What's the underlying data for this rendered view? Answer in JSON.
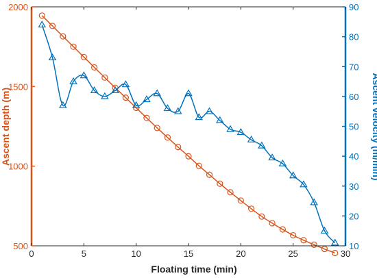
{
  "chart_data": {
    "type": "line",
    "xlabel": "Floating time (min)",
    "ylabel_left": "Ascent depth (m)",
    "ylabel_right": "Ascent velocity (m/min)",
    "xlim": [
      0,
      30
    ],
    "ylim_left": [
      500,
      2000
    ],
    "ylim_right": [
      10,
      90
    ],
    "x_ticks": [
      0,
      5,
      10,
      15,
      20,
      25,
      30
    ],
    "y_left_ticks": [
      500,
      1000,
      1500,
      2000
    ],
    "y_right_ticks": [
      10,
      20,
      30,
      40,
      50,
      60,
      70,
      80,
      90
    ],
    "grid": false,
    "colors": {
      "depth": "#D95319",
      "velocity": "#0072BD",
      "axes": "#262626"
    },
    "series": [
      {
        "axis": "left",
        "marker": "circle",
        "x": [
          1,
          2,
          3,
          4,
          5,
          6,
          7,
          8,
          9,
          10,
          11,
          12,
          13,
          14,
          15,
          16,
          17,
          18,
          19,
          20,
          21,
          22,
          23,
          24,
          25,
          26,
          27,
          28,
          29
        ],
        "values": [
          1945,
          1880,
          1815,
          1750,
          1685,
          1620,
          1556,
          1492,
          1430,
          1366,
          1303,
          1240,
          1180,
          1120,
          1062,
          1002,
          946,
          890,
          836,
          784,
          733,
          684,
          642,
          603,
          566,
          535,
          507,
          480,
          455
        ]
      },
      {
        "axis": "right",
        "marker": "triangle",
        "x": [
          1,
          2,
          3,
          4,
          5,
          6,
          7,
          8,
          9,
          10,
          11,
          12,
          13,
          14,
          15,
          16,
          17,
          18,
          19,
          20,
          21,
          22,
          23,
          24,
          25,
          26,
          27,
          28,
          29
        ],
        "values": [
          84,
          73,
          57,
          65,
          67,
          62,
          60,
          62,
          64,
          57,
          59,
          61,
          56,
          55,
          61,
          53,
          55,
          52,
          49,
          48,
          45.5,
          43.5,
          39.5,
          37.5,
          33.5,
          30.5,
          24.5,
          15,
          11
        ]
      }
    ]
  }
}
